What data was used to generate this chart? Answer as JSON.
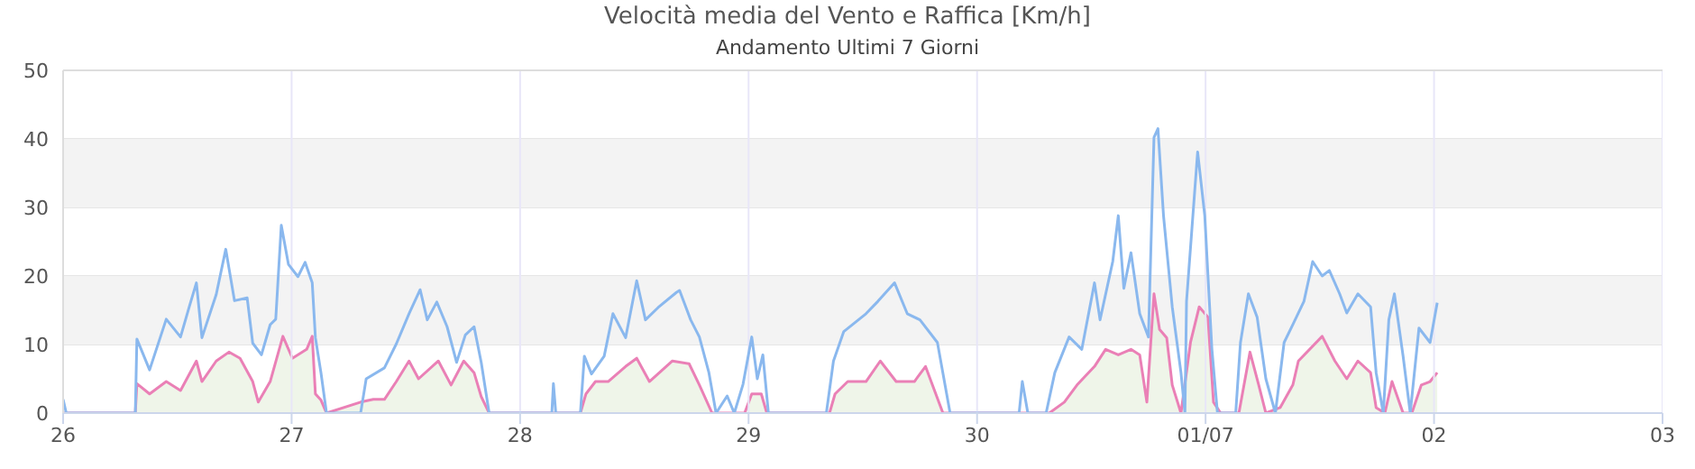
{
  "chart_data": {
    "type": "line",
    "title": "Velocità media del Vento e Raffica [Km/h]",
    "subtitle": "Andamento Ultimi 7 Giorni",
    "xlim": [
      "--06-26",
      "--07-03"
    ],
    "xticks": [
      {
        "value": "--06-26",
        "label": "26"
      },
      {
        "value": "--06-27",
        "label": "27"
      },
      {
        "value": "--06-28",
        "label": "28"
      },
      {
        "value": "--06-29",
        "label": "29"
      },
      {
        "value": "--06-30",
        "label": "30"
      },
      {
        "value": "--07-01",
        "label": "01/07"
      },
      {
        "value": "--07-02",
        "label": "02"
      },
      {
        "value": "--07-03",
        "label": "03"
      }
    ],
    "ylim": [
      0,
      50
    ],
    "yticks": [
      0,
      10,
      20,
      30,
      40,
      50
    ],
    "grid": true,
    "marker": "none",
    "line_style": "solid",
    "bands": [
      {
        "axis": "y",
        "from": 10,
        "to": 20,
        "color": "#f3f3f3"
      },
      {
        "axis": "y",
        "from": 30,
        "to": 40,
        "color": "#f3f3f3"
      }
    ],
    "series": [
      {
        "color": "#8ab8ee",
        "x": [
          "--06-26T00:00",
          "--06-26T00:20",
          "--06-26T07:35",
          "--06-26T07:45",
          "--06-26T09:05",
          "--06-26T10:50",
          "--06-26T12:20",
          "--06-26T13:15",
          "--06-26T14:00",
          "--06-26T14:35",
          "--06-26T16:05",
          "--06-26T17:05",
          "--06-26T18:00",
          "--06-26T19:20",
          "--06-26T19:55",
          "--06-26T20:50",
          "--06-26T21:45",
          "--06-26T22:20",
          "--06-26T22:55",
          "--06-26T23:40",
          "--06-27T00:40",
          "--06-27T01:25",
          "--06-27T02:10",
          "--06-27T02:30",
          "--06-27T03:05",
          "--06-27T03:40",
          "--06-27T07:15",
          "--06-27T07:50",
          "--06-27T09:45",
          "--06-27T11:00",
          "--06-27T12:20",
          "--06-27T13:30",
          "--06-27T14:15",
          "--06-27T15:15",
          "--06-27T16:20",
          "--06-27T17:20",
          "--06-27T18:15",
          "--06-27T19:10",
          "--06-27T19:55",
          "--06-27T20:45",
          "--06-28T03:20",
          "--06-28T03:30",
          "--06-28T03:45",
          "--06-28T06:20",
          "--06-28T06:45",
          "--06-28T07:30",
          "--06-28T08:50",
          "--06-28T09:45",
          "--06-28T11:05",
          "--06-28T12:15",
          "--06-28T13:10",
          "--06-28T14:30",
          "--06-28T16:25",
          "--06-28T16:45",
          "--06-28T17:55",
          "--06-28T18:50",
          "--06-28T19:50",
          "--06-28T20:35",
          "--06-28T21:45",
          "--06-28T22:30",
          "--06-28T23:25",
          "--06-29T00:20",
          "--06-29T00:55",
          "--06-29T01:30",
          "--06-29T02:05",
          "--06-29T08:10",
          "--06-29T08:55",
          "--06-29T10:00",
          "--06-29T12:20",
          "--06-29T13:35",
          "--06-29T15:20",
          "--06-29T16:40",
          "--06-29T18:00",
          "--06-29T19:50",
          "--06-29T21:10",
          "--06-30T04:25",
          "--06-30T04:45",
          "--06-30T05:20",
          "--06-30T07:15",
          "--06-30T08:10",
          "--06-30T09:40",
          "--06-30T11:00",
          "--06-30T12:20",
          "--06-30T12:55",
          "--06-30T14:15",
          "--06-30T14:50",
          "--06-30T15:25",
          "--06-30T16:10",
          "--06-30T17:05",
          "--06-30T18:00",
          "--06-30T18:35",
          "--06-30T19:00",
          "--06-30T19:35",
          "--06-30T20:30",
          "--06-30T21:25",
          "--06-30T21:50",
          "--06-30T22:00",
          "--06-30T23:10",
          "--06-30T23:55",
          "--07-01T00:40",
          "--07-01T01:15",
          "--07-01T03:10",
          "--07-01T03:40",
          "--07-01T04:30",
          "--07-01T05:25",
          "--07-01T06:20",
          "--07-01T07:20",
          "--07-01T08:15",
          "--07-01T09:10",
          "--07-01T10:20",
          "--07-01T11:15",
          "--07-01T12:15",
          "--07-01T13:00",
          "--07-01T14:05",
          "--07-01T14:50",
          "--07-01T16:00",
          "--07-01T17:20",
          "--07-01T17:55",
          "--07-01T18:40",
          "--07-01T19:15",
          "--07-01T19:50",
          "--07-01T20:45",
          "--07-01T21:30",
          "--07-01T22:25",
          "--07-01T23:35",
          "--07-02T00:20"
        ],
        "values": [
          2,
          0,
          0,
          10.8,
          6.3,
          13.7,
          11.1,
          15.5,
          19,
          11,
          17.3,
          23.9,
          16.4,
          16.8,
          10.2,
          8.5,
          12.9,
          13.7,
          27.4,
          21.7,
          19.9,
          22,
          19,
          11,
          5.9,
          0,
          0,
          5,
          6.6,
          10.1,
          14.5,
          18,
          13.6,
          16.2,
          12.6,
          7.4,
          11.4,
          12.6,
          7.4,
          0,
          0,
          4.3,
          0,
          0,
          8.3,
          5.7,
          8.3,
          14.5,
          11,
          19.3,
          13.6,
          15.4,
          17.6,
          17.9,
          13.6,
          11.1,
          5.9,
          0,
          2.5,
          0,
          4.2,
          11.1,
          5,
          8.5,
          0,
          0,
          7.6,
          11.9,
          14.5,
          16.3,
          19,
          14.5,
          13.6,
          10.3,
          0,
          0,
          4.6,
          0,
          0,
          5.9,
          11.1,
          9.3,
          19,
          13.6,
          22.1,
          28.8,
          18.2,
          23.4,
          14.5,
          11.1,
          40.2,
          41.5,
          28.8,
          15.5,
          5.9,
          0,
          16.3,
          38.1,
          28.8,
          9.3,
          0,
          0,
          10.3,
          17.4,
          14,
          5,
          0,
          10.3,
          12.9,
          16.3,
          22.1,
          20,
          20.8,
          17.4,
          14.6,
          17.4,
          15.5,
          5.9,
          0,
          13.6,
          17.4,
          8.3,
          0,
          12.4,
          10.3,
          16.1
        ]
      },
      {
        "type": "area",
        "color": "#ea80b6",
        "x": [
          "--06-26T00:00",
          "--06-26T07:35",
          "--06-26T07:45",
          "--06-26T09:05",
          "--06-26T10:50",
          "--06-26T12:20",
          "--06-26T14:00",
          "--06-26T14:35",
          "--06-26T16:05",
          "--06-26T17:25",
          "--06-26T18:35",
          "--06-26T19:55",
          "--06-26T20:30",
          "--06-26T21:45",
          "--06-26T23:05",
          "--06-27T00:05",
          "--06-27T01:35",
          "--06-27T02:10",
          "--06-27T02:30",
          "--06-27T03:05",
          "--06-27T03:40",
          "--06-27T07:15",
          "--06-27T08:35",
          "--06-27T09:45",
          "--06-27T11:00",
          "--06-27T12:20",
          "--06-27T13:20",
          "--06-27T15:25",
          "--06-27T16:45",
          "--06-27T18:05",
          "--06-27T19:10",
          "--06-27T19:55",
          "--06-27T20:45",
          "--06-28T06:20",
          "--06-28T06:55",
          "--06-28T07:55",
          "--06-28T09:15",
          "--06-28T11:05",
          "--06-28T12:15",
          "--06-28T13:35",
          "--06-28T16:00",
          "--06-28T17:45",
          "--06-28T18:50",
          "--06-28T20:10",
          "--06-28T23:35",
          "--06-29T00:20",
          "--06-29T01:20",
          "--06-29T01:55",
          "--06-29T08:30",
          "--06-29T09:05",
          "--06-29T10:25",
          "--06-29T12:20",
          "--06-29T13:50",
          "--06-29T15:30",
          "--06-29T17:25",
          "--06-29T18:35",
          "--06-29T20:25",
          "--06-30T07:35",
          "--06-30T09:10",
          "--06-30T10:30",
          "--06-30T12:20",
          "--06-30T13:30",
          "--06-30T14:50",
          "--06-30T16:10",
          "--06-30T17:05",
          "--06-30T17:50",
          "--06-30T18:35",
          "--06-30T19:10",
          "--06-30T19:55",
          "--06-30T20:30",
          "--06-30T21:25",
          "--06-30T22:25",
          "--06-30T23:20",
          "--07-01T00:15",
          "--07-01T00:50",
          "--07-01T01:35",
          "--07-01T03:30",
          "--07-01T04:40",
          "--07-01T05:35",
          "--07-01T06:20",
          "--07-01T07:50",
          "--07-01T09:10",
          "--07-01T09:45",
          "--07-01T12:15",
          "--07-01T13:35",
          "--07-01T14:50",
          "--07-01T16:00",
          "--07-01T17:20",
          "--07-01T17:55",
          "--07-01T18:50",
          "--07-01T19:35",
          "--07-01T20:45",
          "--07-01T21:40",
          "--07-01T22:40",
          "--07-01T23:35",
          "--07-02T00:20"
        ],
        "values": [
          0,
          0,
          4.3,
          2.8,
          4.6,
          3.3,
          7.6,
          4.6,
          7.6,
          8.9,
          8,
          4.6,
          1.6,
          4.6,
          11.2,
          8,
          9.3,
          11.2,
          2.8,
          1.9,
          0,
          1.6,
          2,
          2,
          4.6,
          7.6,
          5,
          7.6,
          4.1,
          7.6,
          5.9,
          2.4,
          0,
          0,
          2.8,
          4.6,
          4.6,
          6.8,
          8,
          4.6,
          7.6,
          7.2,
          4.1,
          0,
          0,
          2.8,
          2.8,
          0,
          0,
          2.8,
          4.6,
          4.6,
          7.6,
          4.6,
          4.6,
          6.8,
          0,
          0,
          1.6,
          4.1,
          6.8,
          9.3,
          8.5,
          9.3,
          8.5,
          1.6,
          17.4,
          12.2,
          11,
          4.1,
          0,
          10.3,
          15.5,
          14,
          1.6,
          0,
          0,
          8.9,
          4.1,
          0,
          0.8,
          4.1,
          7.6,
          11.2,
          7.6,
          5,
          7.6,
          5.9,
          0.8,
          0,
          4.6,
          0,
          0,
          4.1,
          4.6,
          5.9
        ]
      }
    ]
  }
}
